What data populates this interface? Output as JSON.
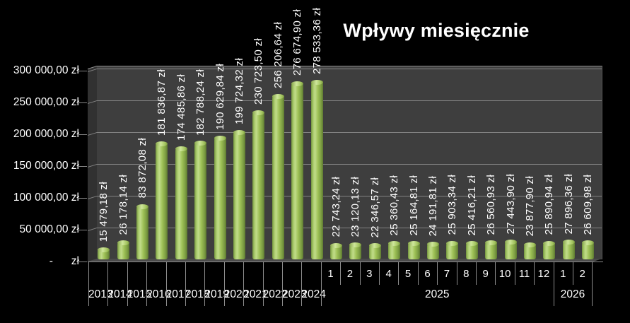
{
  "chart_data": {
    "type": "bar",
    "title": "Wpływy miesięcznie",
    "currency": "zł",
    "xlabel": "",
    "ylabel": "",
    "ylim": [
      0,
      300000
    ],
    "y_tick_interval": 50000,
    "y_ticks": [
      "300 000,00 zł",
      "250 000,00 zł",
      "200 000,00 zł",
      "150 000,00 zł",
      "100 000,00 zł",
      "50 000,00 zł",
      "-      zł"
    ],
    "grid": true,
    "legend_position": "none",
    "bar_color": "#9bbb59",
    "groups": [
      {
        "label": "2013",
        "items": [
          {
            "sub": "",
            "value": 15479.18,
            "data_label": "15 479,18 zł"
          }
        ]
      },
      {
        "label": "2014",
        "items": [
          {
            "sub": "",
            "value": 26178.14,
            "data_label": "26 178,14 zł"
          }
        ]
      },
      {
        "label": "2015",
        "items": [
          {
            "sub": "",
            "value": 83872.08,
            "data_label": "83 872,08 zł"
          }
        ]
      },
      {
        "label": "2016",
        "items": [
          {
            "sub": "",
            "value": 181836.87,
            "data_label": "181 836,87 zł"
          }
        ]
      },
      {
        "label": "2017",
        "items": [
          {
            "sub": "",
            "value": 174485.86,
            "data_label": "174 485,86 zł"
          }
        ]
      },
      {
        "label": "2018",
        "items": [
          {
            "sub": "",
            "value": 182788.24,
            "data_label": "182 788,24 zł"
          }
        ]
      },
      {
        "label": "2019",
        "items": [
          {
            "sub": "",
            "value": 190629.84,
            "data_label": "190 629,84 zł"
          }
        ]
      },
      {
        "label": "2020",
        "items": [
          {
            "sub": "",
            "value": 199724.32,
            "data_label": "199 724,32 zł"
          }
        ]
      },
      {
        "label": "2021",
        "items": [
          {
            "sub": "",
            "value": 230723.5,
            "data_label": "230 723,50 zł"
          }
        ]
      },
      {
        "label": "2022",
        "items": [
          {
            "sub": "",
            "value": 256206.64,
            "data_label": "256 206,64 zł"
          }
        ]
      },
      {
        "label": "2023",
        "items": [
          {
            "sub": "",
            "value": 276674.9,
            "data_label": "276 674,90 zł"
          }
        ]
      },
      {
        "label": "2024",
        "items": [
          {
            "sub": "",
            "value": 278533.36,
            "data_label": "278 533,36 zł"
          }
        ]
      },
      {
        "label": "2025",
        "items": [
          {
            "sub": "1",
            "value": 22743.24,
            "data_label": "22 743,24 zł"
          },
          {
            "sub": "2",
            "value": 23120.13,
            "data_label": "23 120,13 zł"
          },
          {
            "sub": "3",
            "value": 22346.57,
            "data_label": "22 346,57 zł"
          },
          {
            "sub": "4",
            "value": 25360.43,
            "data_label": "25 360,43 zł"
          },
          {
            "sub": "5",
            "value": 25164.81,
            "data_label": "25 164,81 zł"
          },
          {
            "sub": "6",
            "value": 24191.81,
            "data_label": "24 191,81 zł"
          },
          {
            "sub": "7",
            "value": 25903.34,
            "data_label": "25 903,34 zł"
          },
          {
            "sub": "8",
            "value": 25416.21,
            "data_label": "25 416,21 zł"
          },
          {
            "sub": "9",
            "value": 26560.93,
            "data_label": "26 560,93 zł"
          },
          {
            "sub": "10",
            "value": 27443.9,
            "data_label": "27 443,90 zł"
          },
          {
            "sub": "11",
            "value": 23877.9,
            "data_label": "23 877,90 zł"
          },
          {
            "sub": "12",
            "value": 25890.94,
            "data_label": "25 890,94 zł"
          }
        ]
      },
      {
        "label": "2026",
        "items": [
          {
            "sub": "1",
            "value": 27896.36,
            "data_label": "27 896,36 zł"
          },
          {
            "sub": "2",
            "value": 26609.98,
            "data_label": "26 609,98 zł"
          }
        ]
      }
    ]
  },
  "colors": {
    "background": "#000000",
    "plot_wall": "#3e3e3e",
    "side_wall": "#313131",
    "floor": "#4b4b4b",
    "gridline": "#8f8f8f",
    "axis_line": "#8c8c8c",
    "text": "#ffffff",
    "bar_main": "#9bbb59",
    "bar_highlight": "#c1dc8a",
    "bar_shadow": "#5d7830"
  }
}
